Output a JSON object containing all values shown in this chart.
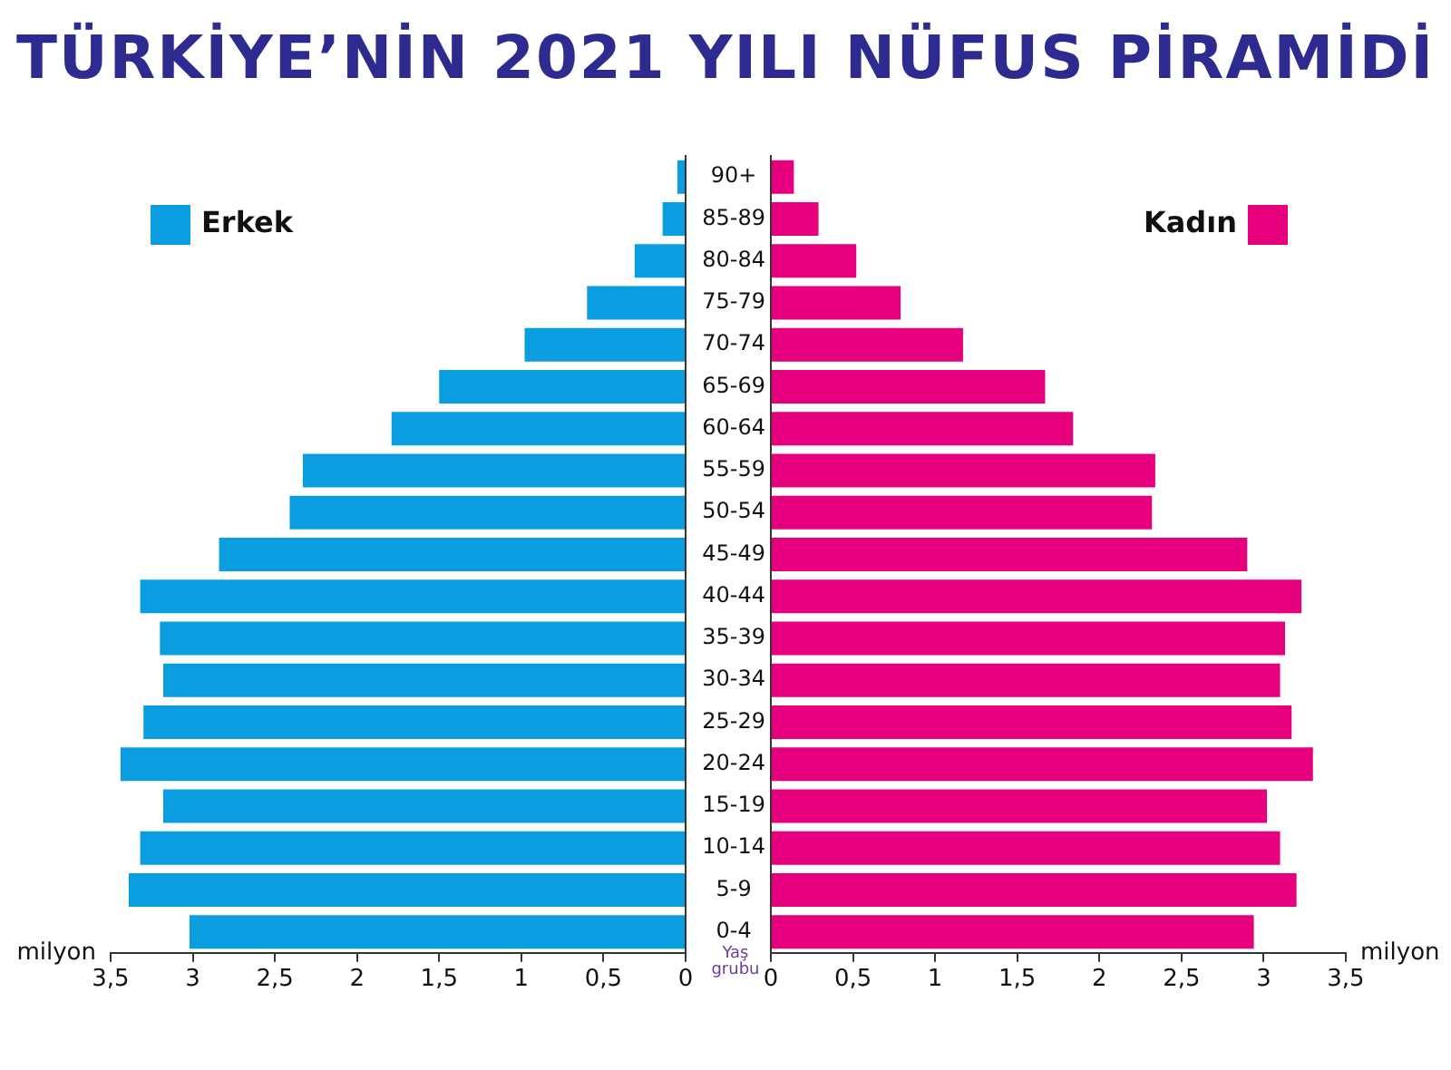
{
  "chart_data": [
    {
      "type": "bar",
      "orientation": "horizontal",
      "title": "TÜRKİYE’NİN 2021 YILI NÜFUS PİRAMİDİ",
      "xlabel": "milyon",
      "categories": [
        null,
        null,
        null,
        null,
        null,
        null,
        null,
        null,
        null,
        null,
        null,
        null,
        null,
        null,
        null,
        null,
        null,
        null,
        null
      ],
      "series": [
        {
          "name": "Erkek",
          "color": "#0a9ee0",
          "values": [
            0.05,
            0.14,
            0.31,
            0.6,
            0.98,
            1.5,
            1.79,
            2.33,
            2.41,
            2.84,
            3.32,
            3.2,
            3.18,
            3.3,
            3.44,
            3.18,
            3.32,
            3.39,
            3.02
          ]
        }
      ],
      "xlim": [
        3.5,
        0
      ],
      "xticks": [
        {
          "value": 3.5,
          "label": "3,5"
        },
        3,
        {
          "value": 2.5,
          "label": "2,5"
        },
        2,
        {
          "value": 1.5,
          "label": "1,5"
        },
        1,
        {
          "value": 0.5,
          "label": "0,5"
        },
        0
      ],
      "tick_labels": "x",
      "grid": false,
      "legend": "top left"
    },
    {
      "type": "bar",
      "orientation": "horizontal",
      "xlabel": "milyon",
      "ylabel": "Yaş grubu",
      "categories": [
        "90+",
        "85-89",
        "80-84",
        "75-79",
        "70-74",
        "65-69",
        "60-64",
        "55-59",
        "50-54",
        "45-49",
        "40-44",
        "35-39",
        "30-34",
        "25-29",
        "20-24",
        "15-19",
        "10-14",
        "5-9",
        "0-4"
      ],
      "series": [
        {
          "name": "Kadın",
          "color": "#e6007e",
          "values": [
            0.14,
            0.29,
            0.52,
            0.79,
            1.17,
            1.67,
            1.84,
            2.34,
            2.32,
            2.9,
            3.23,
            3.13,
            3.1,
            3.17,
            3.3,
            3.02,
            3.1,
            3.2,
            2.94
          ]
        }
      ],
      "xlim": [
        0,
        3.5
      ],
      "xticks": [
        0,
        {
          "value": 0.5,
          "label": "0,5"
        },
        1,
        {
          "value": 1.5,
          "label": "1,5"
        },
        2,
        {
          "value": 2.5,
          "label": "2,5"
        },
        3,
        {
          "value": 3.5,
          "label": "3,5"
        }
      ],
      "grid": false,
      "legend": "top right"
    }
  ]
}
